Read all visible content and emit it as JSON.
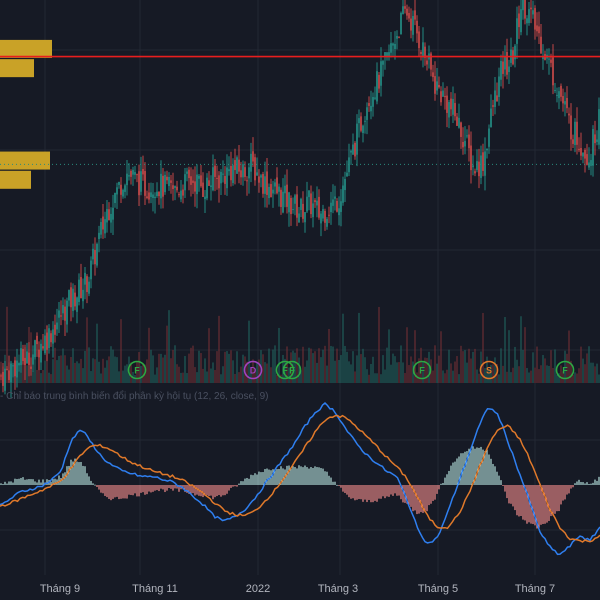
{
  "indicator": {
    "label": "- Chỉ báo trung bình biến đổi phân kỳ hội tụ (12, 26, close, 9)"
  },
  "colors": {
    "background": "#161a25",
    "grid": "#232834",
    "up": "#26a69a",
    "down": "#ef5350",
    "resistance": "#e81e1e",
    "dotted_level": "#2a8a7e",
    "volume_profile": "#c9a227",
    "macd_line": "#2f7ff0",
    "signal_line": "#e0792a",
    "event_green": "#2da843",
    "event_purple": "#a044c0",
    "event_orange": "#e0792a"
  },
  "chart_data": {
    "type": "candlestick",
    "x_axis": {
      "tick_labels": [
        "Tháng 9",
        "Tháng 11",
        "2022",
        "Tháng 3",
        "Tháng 5",
        "Tháng 7"
      ]
    },
    "price_close_series": [
      1,
      3,
      5,
      6,
      9,
      12,
      16,
      20,
      23,
      26,
      35,
      44,
      49,
      54,
      52,
      50,
      51,
      50,
      49,
      51,
      52,
      50,
      52,
      53,
      55,
      54,
      56,
      52,
      50,
      48,
      46,
      44,
      46,
      43,
      45,
      47,
      55,
      64,
      73,
      77,
      83,
      90,
      96,
      91,
      84,
      77,
      73,
      69,
      63,
      55,
      57,
      71,
      81,
      83,
      99,
      94,
      88,
      81,
      74,
      66,
      62,
      58,
      68
    ],
    "resistance_level": 84,
    "dotted_level": 56,
    "volume_profile": [
      {
        "level": 86,
        "size": 52
      },
      {
        "level": 81,
        "size": 34
      },
      {
        "level": 57,
        "size": 50
      },
      {
        "level": 52,
        "size": 31
      }
    ],
    "macd_line": [
      -15,
      -10,
      -5,
      -3,
      -1,
      3,
      10,
      32,
      40,
      30,
      20,
      14,
      10,
      8,
      6,
      6,
      4,
      2,
      -2,
      -8,
      -14,
      -22,
      -26,
      -23,
      -18,
      -10,
      0,
      10,
      20,
      30,
      42,
      52,
      58,
      52,
      40,
      30,
      22,
      16,
      10,
      6,
      -10,
      -30,
      -42,
      -38,
      -20,
      0,
      20,
      40,
      56,
      50,
      30,
      10,
      -10,
      -32,
      -44,
      -50,
      -44,
      -36,
      -40,
      -30
    ],
    "signal_line": [
      -15,
      -13,
      -10,
      -7,
      -4,
      -1,
      3,
      12,
      22,
      28,
      28,
      25,
      20,
      16,
      13,
      10,
      8,
      6,
      3,
      -1,
      -6,
      -12,
      -18,
      -21,
      -22,
      -19,
      -12,
      -4,
      6,
      16,
      27,
      38,
      47,
      50,
      48,
      42,
      35,
      28,
      20,
      13,
      5,
      -8,
      -22,
      -30,
      -30,
      -22,
      -8,
      10,
      28,
      40,
      42,
      34,
      20,
      2,
      -16,
      -30,
      -38,
      -40,
      -40,
      -36
    ],
    "events": [
      {
        "label": "F",
        "date_index": 137,
        "color": "green"
      },
      {
        "label": "D",
        "date_index": 253,
        "color": "purple"
      },
      {
        "label": "F",
        "date_index": 285,
        "color": "green"
      },
      {
        "label": "F",
        "date_index": 292,
        "color": "green"
      },
      {
        "label": "F",
        "date_index": 422,
        "color": "green"
      },
      {
        "label": "S",
        "date_index": 489,
        "color": "orange"
      },
      {
        "label": "F",
        "date_index": 565,
        "color": "green"
      }
    ],
    "grid": true
  }
}
